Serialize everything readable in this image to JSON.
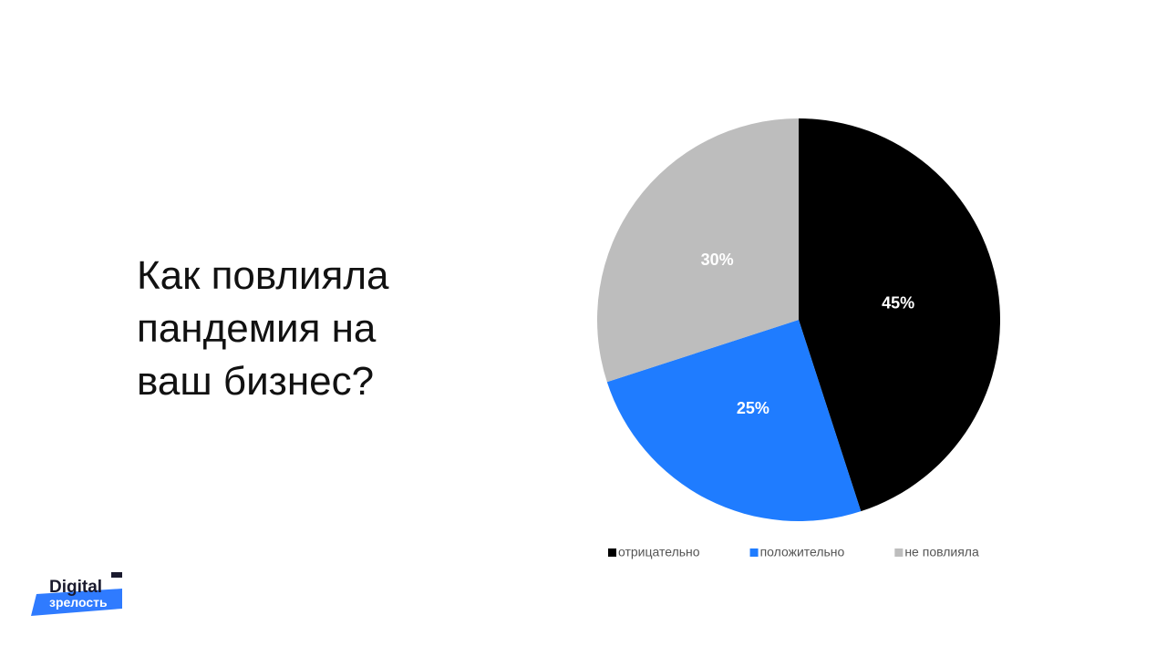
{
  "title": "Как повлияла пандемия на ваш бизнес?",
  "logo": {
    "line1": "Digital",
    "line2": "зрелость"
  },
  "chart_data": {
    "type": "pie",
    "categories": [
      "отрицательно",
      "положительно",
      "не повлияла"
    ],
    "values": [
      45,
      25,
      30
    ],
    "value_labels": [
      "45%",
      "25%",
      "30%"
    ],
    "colors": [
      "#000000",
      "#1f7cff",
      "#bdbdbd"
    ],
    "legend": "bottom"
  }
}
